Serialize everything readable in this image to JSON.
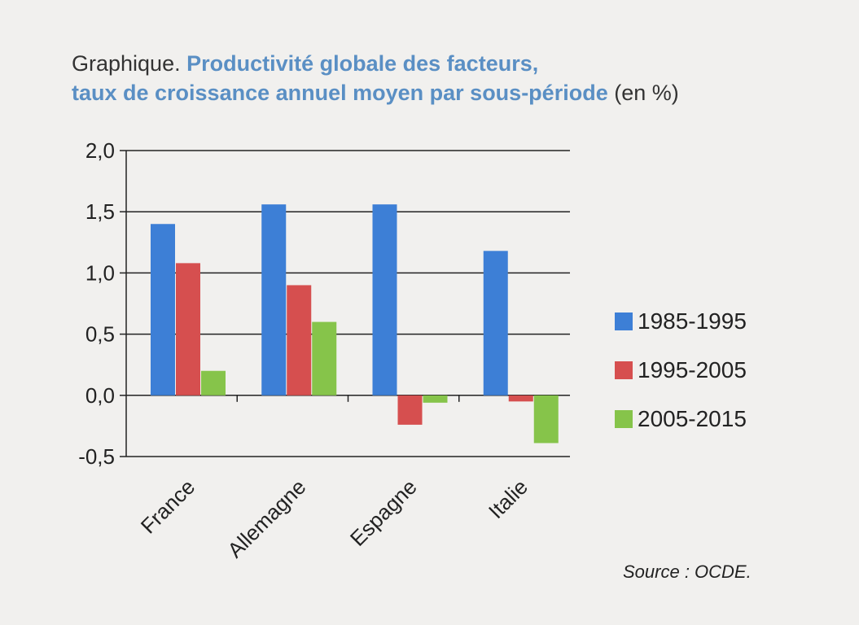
{
  "title": {
    "prefix": "Graphique.",
    "main_line1": "Productivité globale des facteurs,",
    "main_line2": "taux de croissance annuel moyen par sous-période",
    "unit": "(en %)"
  },
  "source": "Source : OCDE.",
  "colors": {
    "1985-1995": "#3d7fd6",
    "1995-2005": "#d64f4f",
    "2005-2015": "#86c44a"
  },
  "chart_data": {
    "type": "bar",
    "categories": [
      "France",
      "Allemagne",
      "Espagne",
      "Italie"
    ],
    "series": [
      {
        "name": "1985-1995",
        "values": [
          1.4,
          1.56,
          1.56,
          1.18
        ]
      },
      {
        "name": "1995-2005",
        "values": [
          1.08,
          0.9,
          -0.24,
          -0.05
        ]
      },
      {
        "name": "2005-2015",
        "values": [
          0.2,
          0.6,
          -0.06,
          -0.39
        ]
      }
    ],
    "ylim": [
      -0.5,
      2.0
    ],
    "yticks": [
      "2,0",
      "1,5",
      "1,0",
      "0,5",
      "0,0",
      "-0,5"
    ],
    "ytick_values": [
      2.0,
      1.5,
      1.0,
      0.5,
      0.0,
      -0.5
    ],
    "grid": true,
    "legend_position": "right"
  }
}
